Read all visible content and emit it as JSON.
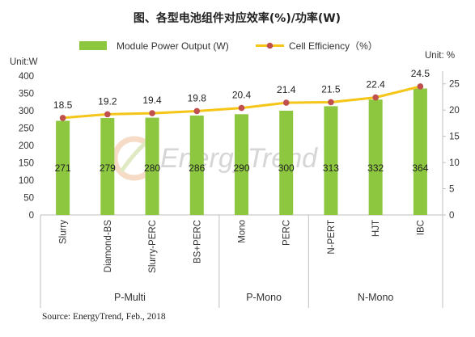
{
  "title": "图、各型电池组件对应效率(%)/功率(W)",
  "source": "Source: EnergyTrend, Feb., 2018",
  "watermark": "EnergyTrend",
  "colors": {
    "bar": "#8dc63f",
    "line": "#f5c518",
    "marker": "#c0504d"
  },
  "chart_data": {
    "type": "bar",
    "title": "图、各型电池组件对应效率(%)/功率(W)",
    "categories": [
      "Slurry",
      "Diamond-BS",
      "Slurry-PERC",
      "BS+PERC",
      "Mono",
      "PERC",
      "N-PERT",
      "HJT",
      "IBC"
    ],
    "groups": [
      {
        "name": "P-Multi",
        "span": [
          0,
          3
        ]
      },
      {
        "name": "P-Mono",
        "span": [
          4,
          5
        ]
      },
      {
        "name": "N-Mono",
        "span": [
          6,
          8
        ]
      }
    ],
    "series": [
      {
        "name": "Module Power Output (W)",
        "type": "bar",
        "axis": "left",
        "values": [
          271,
          279,
          280,
          286,
          290,
          300,
          313,
          332,
          364
        ],
        "labels": [
          "271",
          "279",
          "280",
          "286",
          "290",
          "300",
          "313",
          "332",
          "364"
        ]
      },
      {
        "name": "Cell Efficiency（%）",
        "type": "line",
        "axis": "right",
        "values": [
          18.5,
          19.2,
          19.4,
          19.8,
          20.4,
          21.4,
          21.5,
          22.4,
          24.5
        ],
        "labels": [
          "18.5",
          "19.2",
          "19.4",
          "19.8",
          "20.4",
          "21.4",
          "21.5",
          "22.4",
          "24.5"
        ]
      }
    ],
    "y_left": {
      "unit": "Unit:W",
      "ylim": [
        0,
        400
      ],
      "ticks": [
        "0",
        "50",
        "100",
        "150",
        "200",
        "250",
        "300",
        "350",
        "400"
      ]
    },
    "y_right": {
      "unit": "Unit: %",
      "ylim": [
        0,
        26.5
      ],
      "ticks": [
        "0",
        "5",
        "10",
        "15",
        "20",
        "25"
      ]
    },
    "legend_position": "top",
    "grid": false
  }
}
